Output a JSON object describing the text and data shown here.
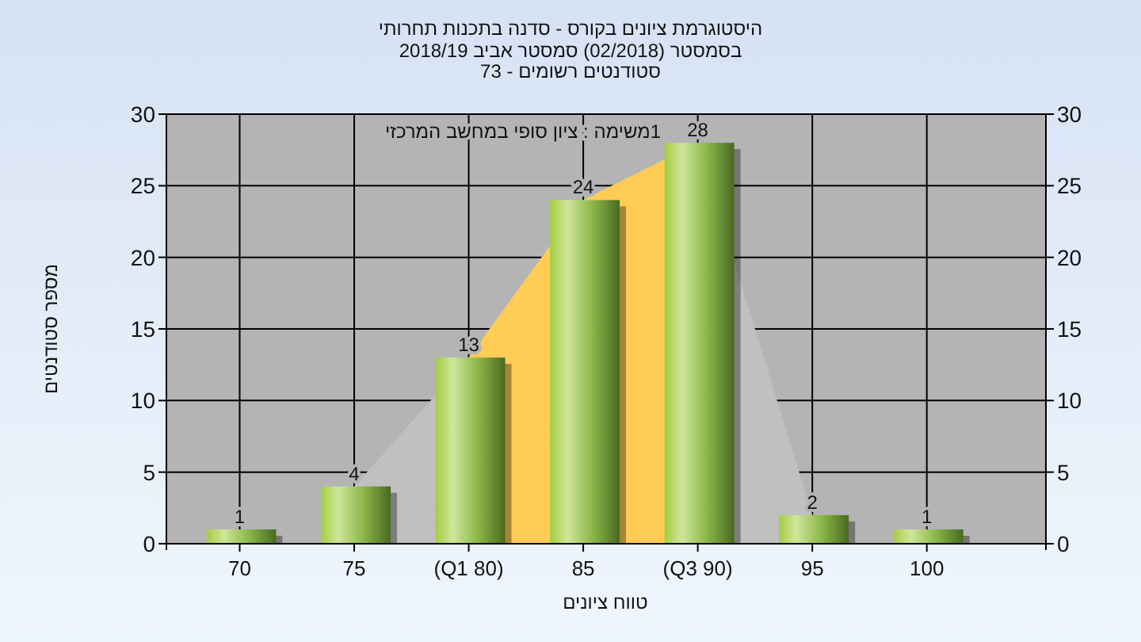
{
  "chart_data": {
    "type": "bar",
    "title": "היסטוגרמת ציונים בקורס - סדנה בתכנות תחרותי",
    "subtitle": "בסמסטר  (02/2018)  סמסטר אביב 2018/19\nסטודנטים רשומים - 73",
    "xlabel": "טווח ציונים",
    "ylabel": "מספר סטודנטים",
    "annotations": [
      "1משימה : ציון סופי במחשב המרכזי"
    ],
    "categories": [
      "70",
      "75",
      "(Q1 80)",
      "85",
      "(Q3 90)",
      "95",
      "100"
    ],
    "series": [
      {
        "type": "area",
        "color": "#c0c0c0",
        "values": [
          null,
          4,
          13,
          24,
          28,
          2,
          null
        ]
      },
      {
        "type": "area",
        "color": "#ffcc55",
        "values": [
          null,
          null,
          13,
          24,
          28,
          null,
          null
        ]
      },
      {
        "color": "#8db84a",
        "values": [
          1,
          4,
          13,
          24,
          28,
          2,
          1
        ],
        "value_labels": [
          "1",
          "4",
          "13",
          "24",
          "28",
          "2",
          "1"
        ]
      }
    ],
    "ylim": [
      0,
      30
    ],
    "yticks": [
      0,
      5,
      10,
      15,
      20,
      25,
      30
    ],
    "y2lim": [
      0,
      30
    ],
    "y2ticks": [
      0,
      5,
      10,
      15,
      20,
      25,
      30
    ],
    "grid": true
  }
}
